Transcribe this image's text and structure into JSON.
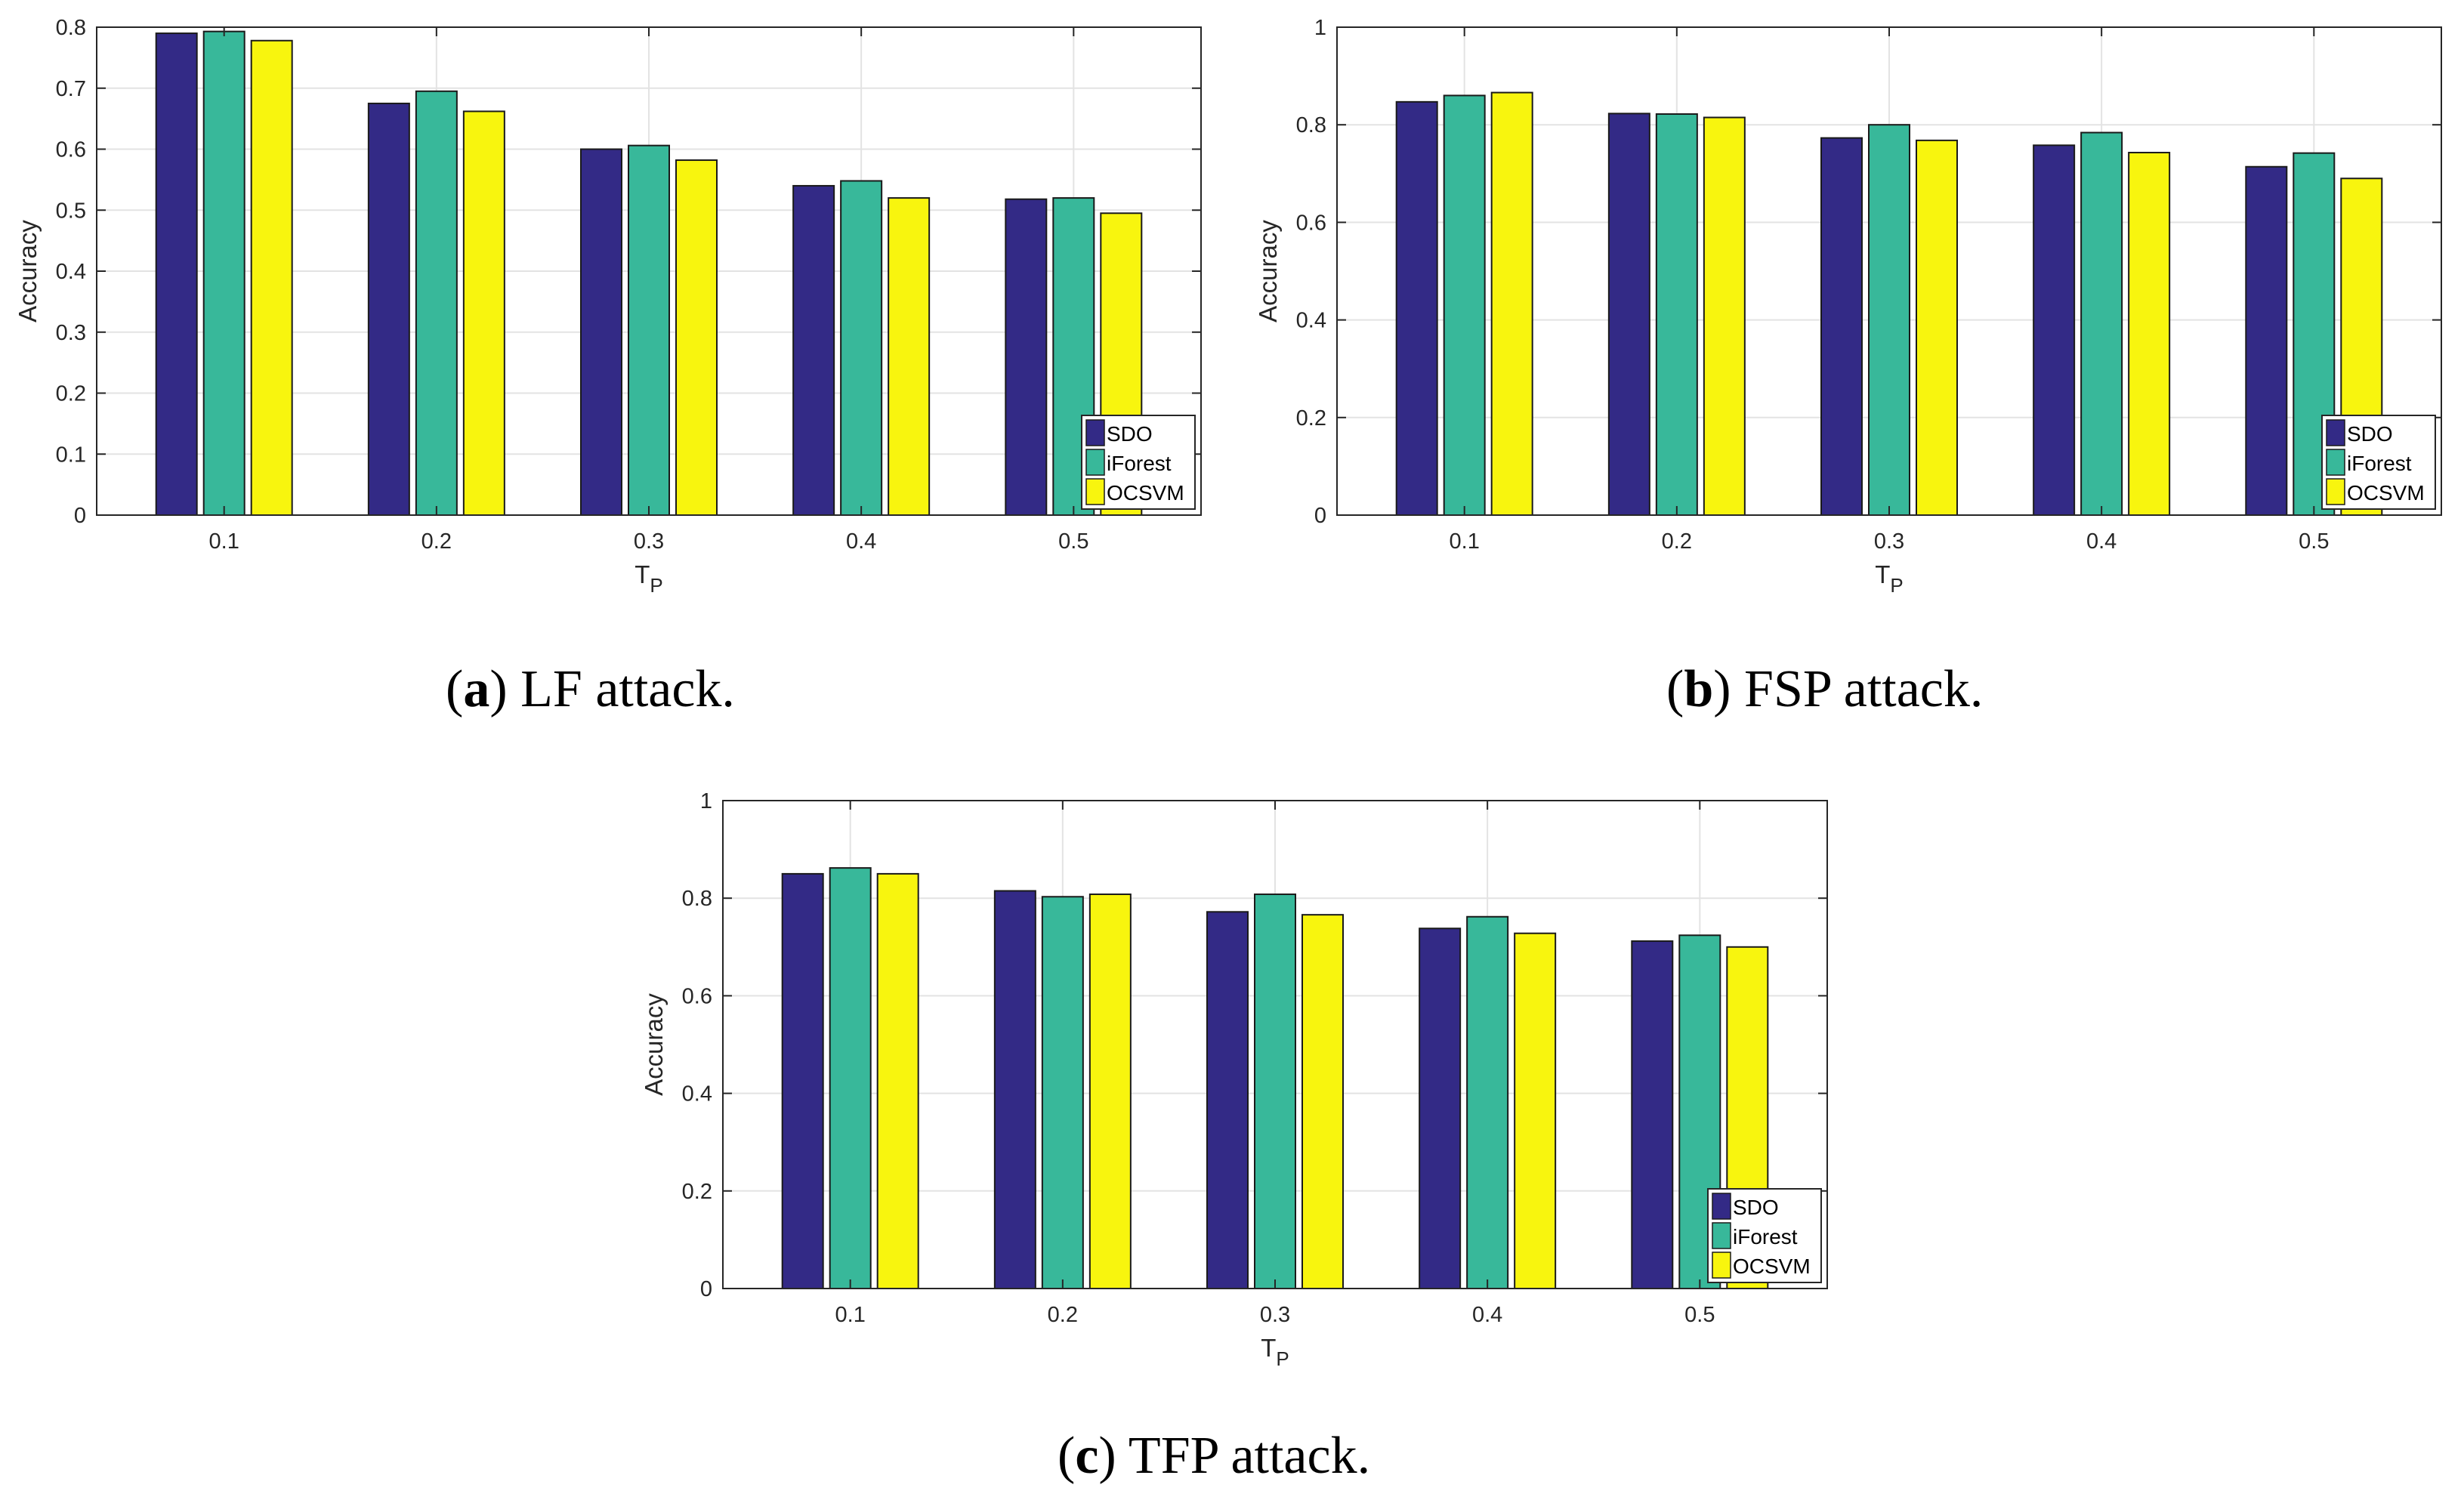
{
  "colors": {
    "SDO": "#332a86",
    "iForest": "#38b89a",
    "OCSVM": "#f8f50e"
  },
  "chart_data": [
    {
      "type": "bar",
      "title": "",
      "caption": {
        "letter": "a",
        "text": " LF attack."
      },
      "categories": [
        "0.1",
        "0.2",
        "0.3",
        "0.4",
        "0.5"
      ],
      "series": [
        {
          "name": "SDO",
          "values": [
            0.79,
            0.675,
            0.6,
            0.54,
            0.518
          ]
        },
        {
          "name": "iForest",
          "values": [
            0.793,
            0.695,
            0.606,
            0.548,
            0.52
          ]
        },
        {
          "name": "OCSVM",
          "values": [
            0.778,
            0.662,
            0.582,
            0.52,
            0.495
          ]
        }
      ],
      "xlabel": "T",
      "xlabel_sub": "P",
      "ylabel": "Accuracy",
      "ylim": [
        0,
        0.8
      ],
      "yticks": [
        "0",
        "0.1",
        "0.2",
        "0.3",
        "0.4",
        "0.5",
        "0.6",
        "0.7",
        "0.8"
      ],
      "grid": true,
      "legend": [
        "SDO",
        "iForest",
        "OCSVM"
      ],
      "legend_position": "bottom-right"
    },
    {
      "type": "bar",
      "title": "",
      "caption": {
        "letter": "b",
        "text": " FSP attack."
      },
      "categories": [
        "0.1",
        "0.2",
        "0.3",
        "0.4",
        "0.5"
      ],
      "series": [
        {
          "name": "SDO",
          "values": [
            0.847,
            0.823,
            0.773,
            0.758,
            0.714
          ]
        },
        {
          "name": "iForest",
          "values": [
            0.86,
            0.822,
            0.8,
            0.784,
            0.742
          ]
        },
        {
          "name": "OCSVM",
          "values": [
            0.866,
            0.815,
            0.768,
            0.743,
            0.69
          ]
        }
      ],
      "xlabel": "T",
      "xlabel_sub": "P",
      "ylabel": "Accuracy",
      "ylim": [
        0,
        1
      ],
      "yticks": [
        "0",
        "0.2",
        "0.4",
        "0.6",
        "0.8",
        "1"
      ],
      "grid": true,
      "legend": [
        "SDO",
        "iForest",
        "OCSVM"
      ],
      "legend_position": "bottom-right"
    },
    {
      "type": "bar",
      "title": "",
      "caption": {
        "letter": "c",
        "text": " TFP attack."
      },
      "categories": [
        "0.1",
        "0.2",
        "0.3",
        "0.4",
        "0.5"
      ],
      "series": [
        {
          "name": "SDO",
          "values": [
            0.85,
            0.815,
            0.772,
            0.738,
            0.712
          ]
        },
        {
          "name": "iForest",
          "values": [
            0.862,
            0.803,
            0.808,
            0.762,
            0.724
          ]
        },
        {
          "name": "OCSVM",
          "values": [
            0.85,
            0.808,
            0.766,
            0.728,
            0.7
          ]
        }
      ],
      "xlabel": "T",
      "xlabel_sub": "P",
      "ylabel": "Accuracy",
      "ylim": [
        0,
        1
      ],
      "yticks": [
        "0",
        "0.2",
        "0.4",
        "0.6",
        "0.8",
        "1"
      ],
      "grid": true,
      "legend": [
        "SDO",
        "iForest",
        "OCSVM"
      ],
      "legend_position": "bottom-right"
    }
  ]
}
